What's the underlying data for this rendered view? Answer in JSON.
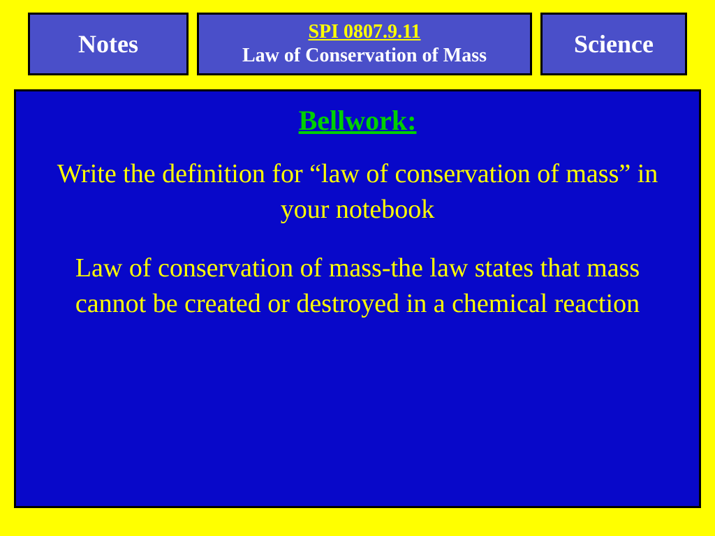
{
  "header": {
    "left": "Notes",
    "center_spi": "SPI 0807.9.11",
    "center_sub": "Law of Conservation of Mass",
    "right": "Science"
  },
  "main": {
    "bellwork": "Bellwork:",
    "instruction": "Write the definition for “law of conservation of mass” in your notebook",
    "definition": "Law of conservation of mass-the law states that mass cannot be created or destroyed in a chemical reaction"
  },
  "colors": {
    "page_bg": "#ffff00",
    "header_box_bg": "#4a4fc9",
    "main_bg": "#0808c9",
    "border": "#000000",
    "spi_text": "#ffff00",
    "header_text": "#ffffff",
    "bellwork_text": "#00d000",
    "body_text": "#ffff00"
  },
  "typography": {
    "font_family": "Times New Roman",
    "header_fontsize": 36,
    "center_fontsize": 28,
    "bellwork_fontsize": 40,
    "body_fontsize": 38
  }
}
